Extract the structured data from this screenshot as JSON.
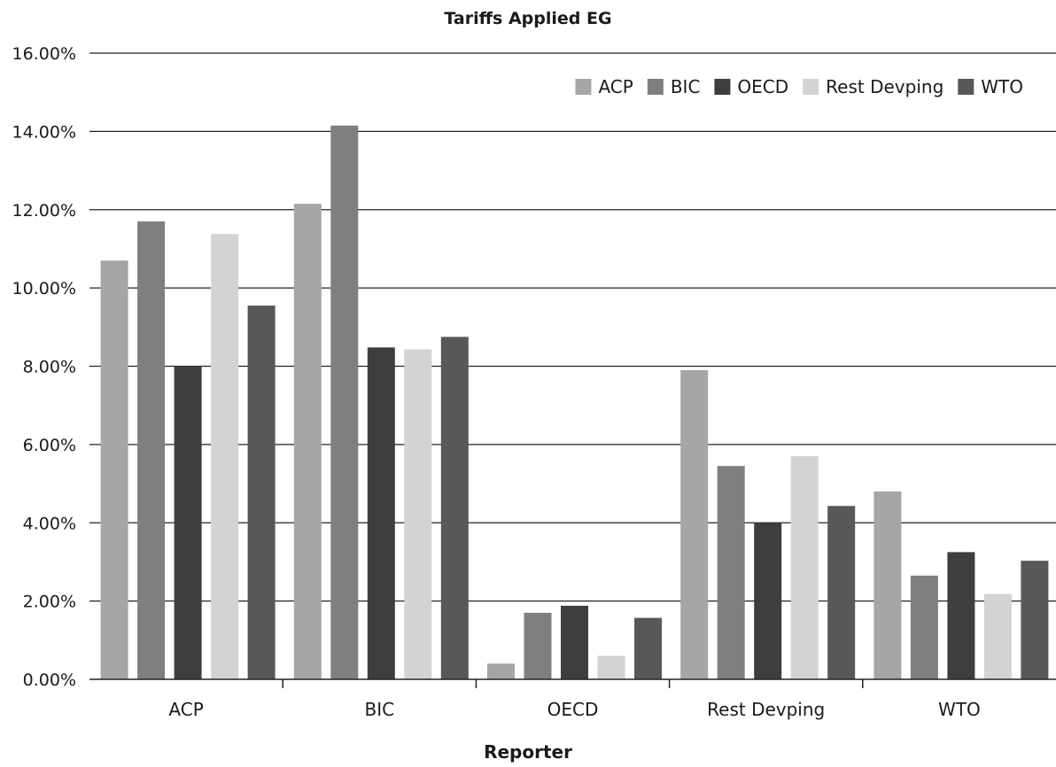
{
  "chart_data": {
    "type": "bar",
    "title": "Tariffs Applied EG",
    "xlabel": "Reporter",
    "ylabel": "",
    "ylim": [
      0,
      16
    ],
    "ytick_step": 2,
    "ytick_format": "percent_2dp",
    "grid": true,
    "legend_position": "top-right",
    "categories": [
      "ACP",
      "BIC",
      "OECD",
      "Rest Devping",
      "WTO"
    ],
    "series": [
      {
        "name": "ACP",
        "color": "#a6a6a8",
        "values": [
          10.7,
          12.15,
          0.4,
          7.9,
          4.8
        ]
      },
      {
        "name": "BIC",
        "color": "#7f7f81",
        "values": [
          11.7,
          14.15,
          1.7,
          5.45,
          2.65
        ]
      },
      {
        "name": "OECD",
        "color": "#3e3e3e",
        "values": [
          8.0,
          8.48,
          1.88,
          4.0,
          3.25
        ]
      },
      {
        "name": "Rest Devping",
        "color": "#d3d3d4",
        "values": [
          11.38,
          8.43,
          0.6,
          5.7,
          2.18
        ]
      },
      {
        "name": "WTO",
        "color": "#58585a",
        "values": [
          9.55,
          8.75,
          1.57,
          4.43,
          3.03
        ]
      }
    ]
  }
}
